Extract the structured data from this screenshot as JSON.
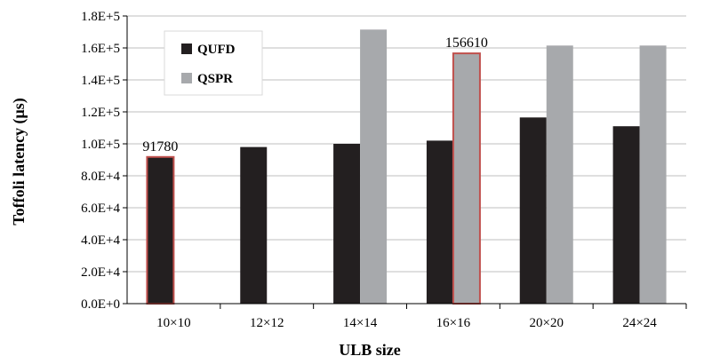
{
  "chart_data": {
    "type": "bar",
    "categories": [
      "10×10",
      "12×12",
      "14×14",
      "16×16",
      "20×20",
      "24×24"
    ],
    "series": [
      {
        "name": "QUFD",
        "color": "#231f20",
        "values": [
          91780,
          98000,
          100000,
          102000,
          116500,
          111000
        ]
      },
      {
        "name": "QSPR",
        "color": "#a7a9ac",
        "values": [
          null,
          null,
          171500,
          156610,
          161500,
          161500
        ]
      }
    ],
    "ylim": [
      0,
      180000
    ],
    "yticks": [
      "0.0E+0",
      "2.0E+4",
      "4.0E+4",
      "6.0E+4",
      "8.0E+4",
      "1.0E+5",
      "1.2E+5",
      "1.4E+5",
      "1.6E+5",
      "1.8E+5"
    ],
    "ytick_values": [
      0,
      20000,
      40000,
      60000,
      80000,
      100000,
      120000,
      140000,
      160000,
      180000
    ],
    "xlabel": "ULB size",
    "ylabel": "Toffoli latency (μs)",
    "grid": true,
    "legend": "top-left",
    "highlight_color": "#c0504d",
    "annotations": [
      {
        "category": "10×10",
        "series": "QUFD",
        "text": "91780"
      },
      {
        "category": "16×16",
        "series": "QSPR",
        "text": "156610"
      }
    ]
  }
}
